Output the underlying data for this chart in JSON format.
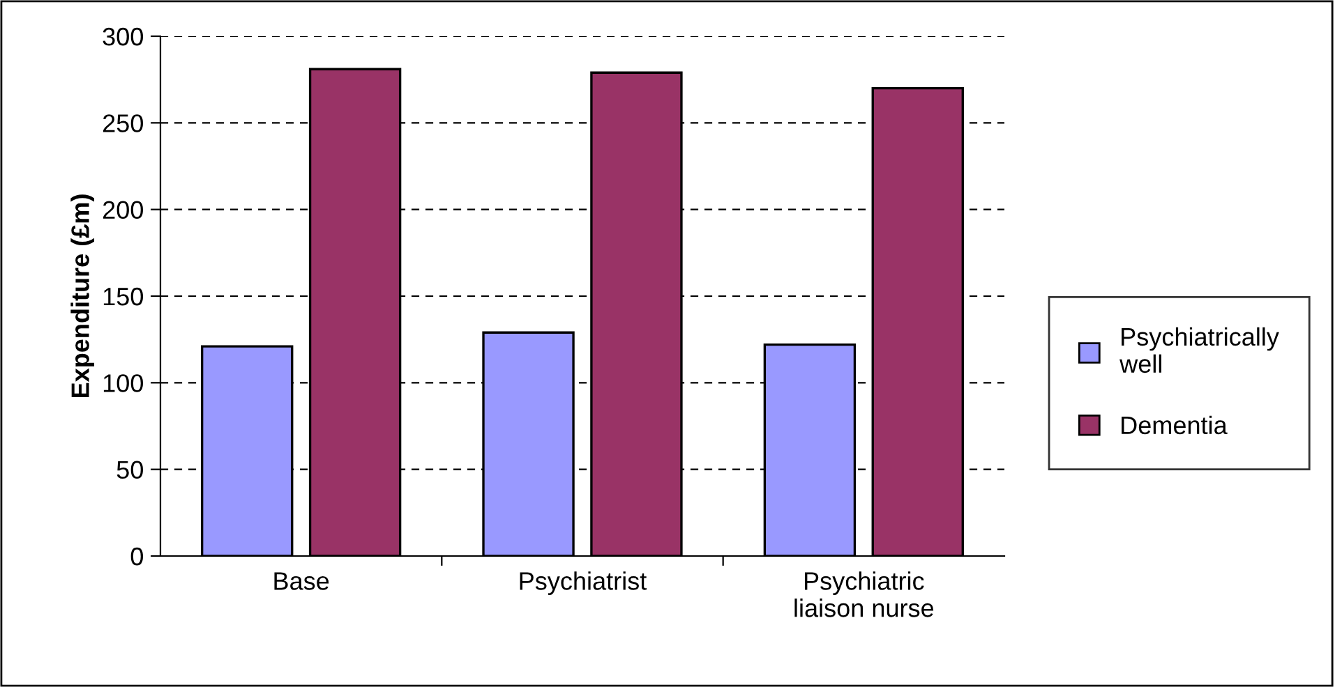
{
  "chart_data": {
    "type": "bar",
    "ylabel": "Expenditure (£m)",
    "categories": [
      "Base",
      "Psychiatrist",
      "Psychiatric\nliaison nurse"
    ],
    "series": [
      {
        "name": "Psychiatrically\nwell",
        "color": "#9999ff",
        "values": [
          121,
          129,
          122
        ]
      },
      {
        "name": "Dementia",
        "color": "#993366",
        "values": [
          281,
          279,
          270
        ]
      }
    ],
    "ylim": [
      0,
      300
    ],
    "yticks": [
      0,
      50,
      100,
      150,
      200,
      250,
      300
    ],
    "grid": "y",
    "legend": "right"
  }
}
